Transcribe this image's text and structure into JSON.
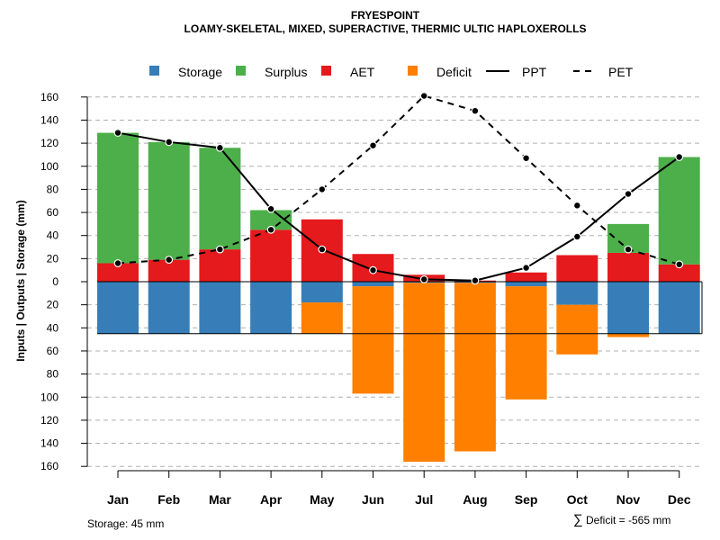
{
  "chart_data": {
    "type": "bar",
    "title": "FRYESPOINT",
    "subtitle": "LOAMY-SKELETAL, MIXED, SUPERACTIVE, THERMIC ULTIC HAPLOXEROLLS",
    "ylabel": "Inputs | Outputs | Storage    (mm)",
    "categories": [
      "Jan",
      "Feb",
      "Mar",
      "Apr",
      "May",
      "Jun",
      "Jul",
      "Aug",
      "Sep",
      "Oct",
      "Nov",
      "Dec"
    ],
    "ylim": [
      -160,
      170
    ],
    "yticks": [
      160,
      140,
      120,
      100,
      80,
      60,
      40,
      20,
      0,
      20,
      40,
      60,
      80,
      100,
      120,
      140,
      160
    ],
    "ytick_values": [
      160,
      140,
      120,
      100,
      80,
      60,
      40,
      20,
      0,
      -20,
      -40,
      -60,
      -80,
      -100,
      -120,
      -140,
      -160
    ],
    "grid": true,
    "legend": [
      "Storage",
      "Surplus",
      "AET",
      "Deficit",
      "PPT",
      "PET"
    ],
    "colors": {
      "storage": "#377eb8",
      "surplus": "#4daf4a",
      "aet": "#e41a1c",
      "deficit": "#ff7f00",
      "line": "#000000",
      "grid": "#b0b0b0"
    },
    "series": [
      {
        "name": "AET",
        "values": [
          16,
          19,
          28,
          45,
          54,
          24,
          6,
          1,
          8,
          23,
          25,
          15
        ]
      },
      {
        "name": "Surplus",
        "values": [
          113,
          102,
          88,
          17,
          0,
          0,
          0,
          0,
          0,
          0,
          25,
          93
        ]
      },
      {
        "name": "Storage",
        "values": [
          45,
          45,
          45,
          45,
          18,
          4,
          1,
          1,
          4,
          20,
          45,
          45
        ]
      },
      {
        "name": "Deficit",
        "values": [
          0,
          0,
          0,
          0,
          27,
          93,
          155,
          146,
          98,
          43,
          3,
          0
        ]
      },
      {
        "name": "PPT",
        "values": [
          129,
          121,
          116,
          63,
          28,
          10,
          2,
          1,
          12,
          39,
          76,
          108
        ]
      },
      {
        "name": "PET",
        "values": [
          16,
          19,
          28,
          45,
          80,
          118,
          161,
          148,
          107,
          66,
          28,
          15
        ]
      }
    ],
    "storage_capacity_line": -45
  },
  "footer": {
    "storage": "Storage: 45 mm",
    "deficit_symbol": "∑",
    "deficit": "Deficit = -565 mm"
  }
}
